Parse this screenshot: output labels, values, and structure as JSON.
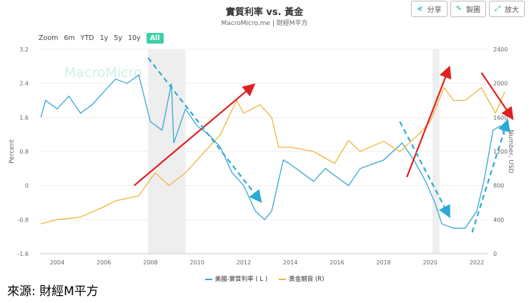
{
  "header": {
    "title": "實質利率 vs. 黃金",
    "subtitle": "MacroMicro.me | 財經M平方",
    "buttons": [
      {
        "label": "分享",
        "icon": "share-icon"
      },
      {
        "label": "製圖",
        "icon": "pencil-icon"
      },
      {
        "label": "放大",
        "icon": "expand-icon"
      }
    ]
  },
  "zoom": {
    "label": "Zoom",
    "options": [
      "6m",
      "YTD",
      "1y",
      "5y",
      "10y",
      "All"
    ],
    "selected": "All"
  },
  "watermark": "MacroMicro",
  "source": "來源: 財經M平方",
  "chart_data": {
    "type": "line",
    "title": "實質利率 vs. 黃金",
    "ylabel_left": "Percent",
    "ylabel_right": "Number, USD",
    "ylim_left": [
      -1.6,
      3.2
    ],
    "ylim_right": [
      0,
      2400
    ],
    "xlim": [
      2003.3,
      2023.3
    ],
    "x_ticks": [
      "2004",
      "2006",
      "2008",
      "2010",
      "2012",
      "2014",
      "2016",
      "2018",
      "2020",
      "2022"
    ],
    "y_ticks_left": [
      "3.2",
      "2.4",
      "1.6",
      "0.8",
      "0",
      "-0.8",
      "-1.6"
    ],
    "y_ticks_right": [
      "2400",
      "2000",
      "1600",
      "1200",
      "800",
      "400",
      "0"
    ],
    "recessions": [
      [
        2007.9,
        2009.5
      ],
      [
        2020.1,
        2020.4
      ]
    ],
    "legend_position": "bottom",
    "series": [
      {
        "name": "美國-實質利率 ( L )",
        "axis": "left",
        "color": "#3aa6d6",
        "points": [
          [
            2003.3,
            1.6
          ],
          [
            2003.5,
            2.0
          ],
          [
            2004,
            1.8
          ],
          [
            2004.5,
            2.1
          ],
          [
            2005,
            1.7
          ],
          [
            2005.5,
            1.9
          ],
          [
            2006,
            2.2
          ],
          [
            2006.5,
            2.5
          ],
          [
            2007,
            2.4
          ],
          [
            2007.5,
            2.6
          ],
          [
            2008,
            1.5
          ],
          [
            2008.5,
            1.3
          ],
          [
            2008.9,
            2.4
          ],
          [
            2009,
            1.0
          ],
          [
            2009.5,
            1.8
          ],
          [
            2010,
            1.4
          ],
          [
            2010.5,
            1.2
          ],
          [
            2011,
            0.9
          ],
          [
            2011.5,
            0.3
          ],
          [
            2012,
            0.0
          ],
          [
            2012.5,
            -0.6
          ],
          [
            2012.9,
            -0.8
          ],
          [
            2013.2,
            -0.6
          ],
          [
            2013.7,
            0.6
          ],
          [
            2014,
            0.5
          ],
          [
            2014.5,
            0.3
          ],
          [
            2015,
            0.1
          ],
          [
            2015.5,
            0.4
          ],
          [
            2016,
            0.2
          ],
          [
            2016.5,
            0.0
          ],
          [
            2017,
            0.4
          ],
          [
            2017.5,
            0.5
          ],
          [
            2018,
            0.6
          ],
          [
            2018.8,
            1.0
          ],
          [
            2019.3,
            0.6
          ],
          [
            2019.8,
            0.1
          ],
          [
            2020.2,
            -0.4
          ],
          [
            2020.5,
            -0.9
          ],
          [
            2021,
            -1.0
          ],
          [
            2021.5,
            -1.0
          ],
          [
            2022,
            -0.6
          ],
          [
            2022.3,
            0.1
          ],
          [
            2022.7,
            1.3
          ],
          [
            2023,
            1.4
          ],
          [
            2023.2,
            1.2
          ]
        ]
      },
      {
        "name": "黃金期貨 (R)",
        "axis": "right",
        "color": "#f0b43c",
        "points": [
          [
            2003.3,
            350
          ],
          [
            2004,
            400
          ],
          [
            2005,
            430
          ],
          [
            2006,
            550
          ],
          [
            2006.5,
            620
          ],
          [
            2007.5,
            680
          ],
          [
            2008.2,
            950
          ],
          [
            2008.8,
            800
          ],
          [
            2009.5,
            950
          ],
          [
            2010,
            1100
          ],
          [
            2010.5,
            1250
          ],
          [
            2011,
            1400
          ],
          [
            2011.7,
            1800
          ],
          [
            2012,
            1650
          ],
          [
            2012.7,
            1750
          ],
          [
            2013.2,
            1600
          ],
          [
            2013.5,
            1250
          ],
          [
            2014,
            1250
          ],
          [
            2015,
            1200
          ],
          [
            2015.9,
            1060
          ],
          [
            2016.5,
            1330
          ],
          [
            2017,
            1200
          ],
          [
            2017.5,
            1260
          ],
          [
            2018,
            1320
          ],
          [
            2018.7,
            1200
          ],
          [
            2019.5,
            1400
          ],
          [
            2020,
            1550
          ],
          [
            2020.6,
            1950
          ],
          [
            2021,
            1800
          ],
          [
            2021.5,
            1800
          ],
          [
            2022.2,
            1950
          ],
          [
            2022.8,
            1650
          ],
          [
            2023.2,
            1900
          ]
        ]
      }
    ],
    "annotations": [
      {
        "type": "arrow",
        "style": "solid",
        "color": "#e02020",
        "from": [
          2007.3,
          0
        ],
        "to": [
          2012.4,
          2.35
        ]
      },
      {
        "type": "arrow",
        "style": "dashed",
        "color": "#2aaad6",
        "from": [
          2007.9,
          3.0
        ],
        "to": [
          2012.7,
          -0.35
        ]
      },
      {
        "type": "arrow",
        "style": "solid",
        "color": "#e02020",
        "from": [
          2019.0,
          0.2
        ],
        "to": [
          2020.8,
          2.75
        ]
      },
      {
        "type": "arrow",
        "style": "dashed",
        "color": "#2aaad6",
        "from": [
          2018.7,
          1.5
        ],
        "to": [
          2020.8,
          -0.7
        ]
      },
      {
        "type": "arrow",
        "style": "solid",
        "color": "#e02020",
        "from": [
          2022.2,
          2.65
        ],
        "to": [
          2023.5,
          1.6
        ]
      },
      {
        "type": "arrow",
        "style": "dashed",
        "color": "#2aaad6",
        "from": [
          2021.8,
          -1.1
        ],
        "to": [
          2023.3,
          1.5
        ]
      }
    ]
  }
}
